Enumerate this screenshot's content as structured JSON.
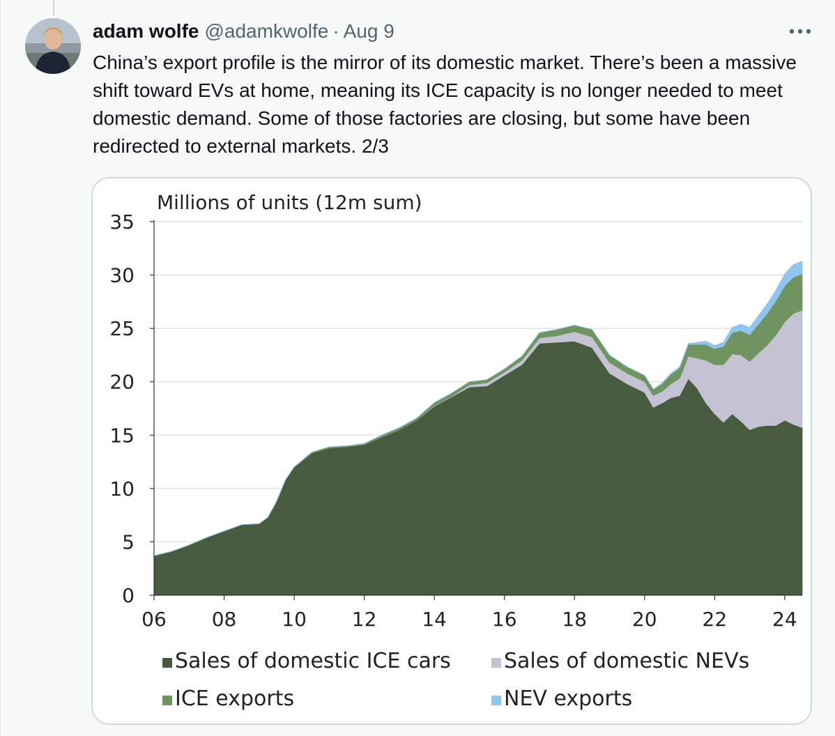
{
  "tweet": {
    "author_name": "adam wolfe",
    "handle": "@adamkwolfe",
    "separator": "·",
    "date": "Aug 9",
    "more_icon": "more-horizontal-icon",
    "text": "China’s export profile is the mirror of its domestic market. There’s been a massive shift toward EVs at home, meaning its ICE capacity is no longer needed to meet domestic demand. Some of those factories are closing, but some have been redirected to external markets. 2/3",
    "colors": {
      "text": "#0f1419",
      "secondary": "#536471",
      "border": "#cfd9de"
    }
  },
  "chart_data": {
    "type": "area",
    "stacked": true,
    "title": "Millions of units (12m sum)",
    "xlabel": "",
    "ylabel": "",
    "xlim": [
      2006.0,
      2024.5
    ],
    "ylim": [
      0,
      35
    ],
    "x_ticks": [
      "06",
      "08",
      "10",
      "12",
      "14",
      "16",
      "18",
      "20",
      "22",
      "24"
    ],
    "y_ticks": [
      "0",
      "5",
      "10",
      "15",
      "20",
      "25",
      "30",
      "35"
    ],
    "grid": true,
    "legend_position": "bottom",
    "x": [
      2006.0,
      2006.5,
      2007.0,
      2007.5,
      2008.0,
      2008.5,
      2009.0,
      2009.25,
      2009.5,
      2009.75,
      2010.0,
      2010.5,
      2011.0,
      2011.5,
      2012.0,
      2012.5,
      2013.0,
      2013.5,
      2014.0,
      2014.5,
      2015.0,
      2015.5,
      2016.0,
      2016.5,
      2017.0,
      2017.5,
      2018.0,
      2018.5,
      2019.0,
      2019.5,
      2020.0,
      2020.25,
      2020.5,
      2020.75,
      2021.0,
      2021.25,
      2021.5,
      2021.75,
      2022.0,
      2022.25,
      2022.5,
      2022.75,
      2023.0,
      2023.25,
      2023.5,
      2023.75,
      2024.0,
      2024.25,
      2024.5
    ],
    "series": [
      {
        "name": "Sales of domestic ICE cars",
        "color": "#475b3e",
        "values": [
          3.7,
          4.1,
          4.7,
          5.4,
          6.0,
          6.6,
          6.7,
          7.3,
          8.8,
          10.8,
          12.0,
          13.3,
          13.8,
          13.9,
          14.1,
          14.8,
          15.5,
          16.4,
          17.7,
          18.6,
          19.5,
          19.6,
          20.6,
          21.6,
          23.6,
          23.7,
          23.8,
          23.2,
          20.8,
          19.8,
          19.0,
          17.6,
          18.0,
          18.5,
          18.7,
          20.3,
          19.4,
          18.0,
          17.0,
          16.2,
          17.0,
          16.3,
          15.5,
          15.8,
          15.9,
          15.9,
          16.4,
          16.0,
          15.7
        ]
      },
      {
        "name": "Sales of domestic NEVs",
        "color": "#c5c3d3",
        "values": [
          0,
          0,
          0,
          0,
          0,
          0,
          0,
          0,
          0,
          0,
          0,
          0,
          0,
          0,
          0,
          0,
          0,
          0,
          0.05,
          0.05,
          0.2,
          0.3,
          0.3,
          0.4,
          0.5,
          0.6,
          0.9,
          1.0,
          1.0,
          1.0,
          1.0,
          1.1,
          1.1,
          1.3,
          1.6,
          2.1,
          2.8,
          4.0,
          4.6,
          5.4,
          5.6,
          6.2,
          6.4,
          6.9,
          7.5,
          8.5,
          9.2,
          10.4,
          11.0
        ]
      },
      {
        "name": "ICE exports",
        "color": "#6f9460",
        "values": [
          0,
          0,
          0,
          0,
          0,
          0,
          0,
          0,
          0,
          0,
          0,
          0.1,
          0.1,
          0.1,
          0.1,
          0.2,
          0.2,
          0.2,
          0.3,
          0.3,
          0.3,
          0.3,
          0.3,
          0.4,
          0.5,
          0.6,
          0.6,
          0.7,
          0.7,
          0.6,
          0.6,
          0.6,
          0.7,
          0.9,
          1.0,
          1.1,
          1.3,
          1.5,
          1.5,
          1.7,
          2.0,
          2.3,
          2.5,
          2.7,
          3.0,
          3.2,
          3.4,
          3.4,
          3.4
        ]
      },
      {
        "name": "NEV exports",
        "color": "#8fc6ef",
        "values": [
          0,
          0,
          0,
          0,
          0,
          0,
          0,
          0,
          0,
          0,
          0,
          0,
          0,
          0,
          0,
          0,
          0,
          0,
          0,
          0,
          0,
          0,
          0,
          0,
          0,
          0,
          0,
          0,
          0,
          0,
          0,
          0,
          0.1,
          0.1,
          0.1,
          0.1,
          0.2,
          0.3,
          0.3,
          0.4,
          0.5,
          0.6,
          0.7,
          0.8,
          0.9,
          1.0,
          1.1,
          1.2,
          1.2
        ]
      }
    ],
    "legend": [
      {
        "label": "Sales of domestic ICE cars",
        "color": "#475b3e"
      },
      {
        "label": "Sales of domestic NEVs",
        "color": "#c5c3d3"
      },
      {
        "label": "ICE exports",
        "color": "#6f9460"
      },
      {
        "label": "NEV exports",
        "color": "#8fc6ef"
      }
    ]
  }
}
